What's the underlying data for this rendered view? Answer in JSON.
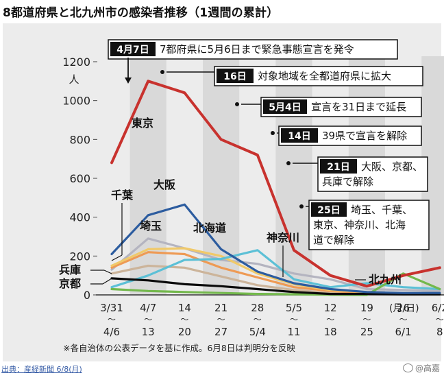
{
  "page": {
    "title": "8都道府県と北九州市の感染者推移（1週間の累計）",
    "source": "出典：産経新聞 6/8(月)",
    "watermark": "@高嘉",
    "footnote": "※各自治体の公表データを基に作成。6月8日は判明分を反映"
  },
  "chart_data": {
    "type": "line",
    "y_unit": "人",
    "x_unit": "(月/日)",
    "ylim": [
      0,
      1200
    ],
    "y_ticks": [
      0,
      200,
      400,
      600,
      800,
      1000,
      1200
    ],
    "grid": false,
    "x_ticks": [
      {
        "top": "3/31",
        "bottom": "4/6"
      },
      {
        "top": "4/7",
        "bottom": "13"
      },
      {
        "top": "14",
        "bottom": "20"
      },
      {
        "top": "21",
        "bottom": "27"
      },
      {
        "top": "28",
        "bottom": "5/4"
      },
      {
        "top": "5/5",
        "bottom": "11"
      },
      {
        "top": "12",
        "bottom": "18"
      },
      {
        "top": "19",
        "bottom": "25"
      },
      {
        "top": "26",
        "bottom": "6/1"
      },
      {
        "top": "6/2",
        "bottom": "8"
      }
    ],
    "tilde": "〜",
    "series": [
      {
        "name": "東京",
        "color": "#c8322e",
        "values": [
          680,
          1100,
          1040,
          800,
          720,
          230,
          100,
          45,
          100,
          140
        ]
      },
      {
        "name": "大阪",
        "color": "#2c5c9f",
        "values": [
          210,
          410,
          465,
          235,
          120,
          60,
          30,
          15,
          10,
          10
        ]
      },
      {
        "name": "北海道",
        "color": "#5cc0d6",
        "values": [
          40,
          100,
          180,
          185,
          230,
          80,
          40,
          60,
          40,
          30
        ]
      },
      {
        "name": "神奈川",
        "color": "#b4b4c0",
        "values": [
          130,
          290,
          240,
          180,
          160,
          110,
          80,
          30,
          25,
          20
        ]
      },
      {
        "name": "埼玉",
        "color": "#f0c96a",
        "values": [
          150,
          235,
          240,
          200,
          110,
          55,
          25,
          15,
          10,
          10
        ]
      },
      {
        "name": "千葉",
        "color": "#ee9a54",
        "values": [
          140,
          220,
          210,
          140,
          90,
          40,
          20,
          10,
          10,
          5
        ]
      },
      {
        "name": "兵庫",
        "color": "#ccb49a",
        "values": [
          110,
          150,
          140,
          95,
          50,
          25,
          10,
          5,
          5,
          5
        ]
      },
      {
        "name": "京都",
        "color": "#0a0a0a",
        "values": [
          85,
          75,
          55,
          45,
          30,
          15,
          5,
          5,
          3,
          3
        ]
      },
      {
        "name": "北九州",
        "color": "#73b84c",
        "values": [
          30,
          20,
          15,
          10,
          5,
          3,
          1,
          0,
          110,
          30
        ]
      }
    ],
    "annotations": [
      {
        "tag": "4月7日",
        "text": "7都府県に5月6日まで緊急事態宣言を発令"
      },
      {
        "tag": "16日",
        "text": "対象地域を全都道府県に拡大"
      },
      {
        "tag": "5月4日",
        "text": "宣言を31日まで延長"
      },
      {
        "tag": "14日",
        "text": "39県で宣言を解除"
      },
      {
        "tag": "21日",
        "text": "大阪、京都、",
        "text2": "兵庫で解除"
      },
      {
        "tag": "25日",
        "text": "埼玉、千葉、",
        "text2": "東京、神奈川、北海",
        "text3": "道で解除"
      }
    ]
  }
}
